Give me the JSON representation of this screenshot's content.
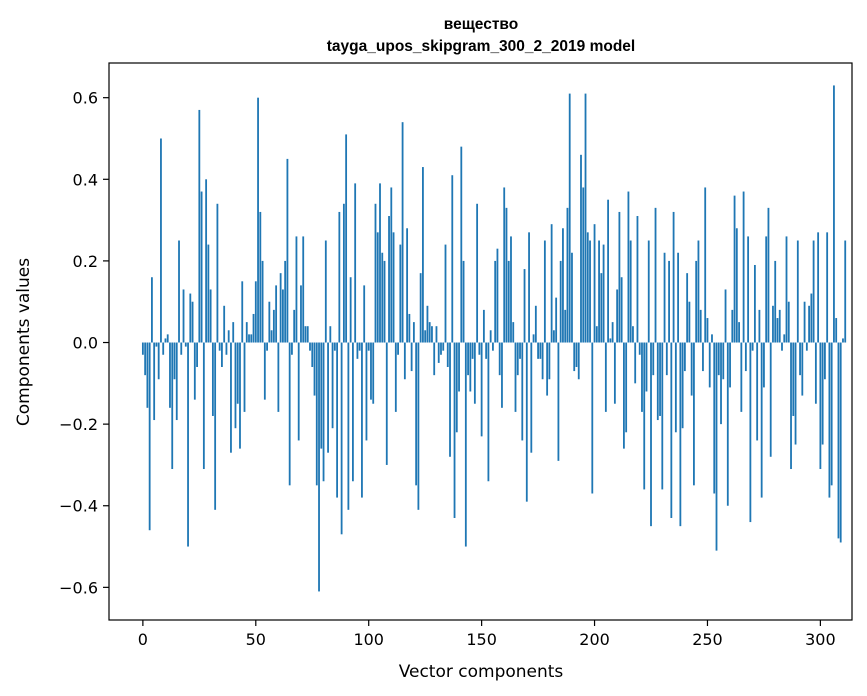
{
  "chart_data": {
    "type": "bar",
    "title": "вещество",
    "subtitle": "tayga_upos_skipgram_300_2_2019 model",
    "xlabel": "Vector components",
    "ylabel": "Components values",
    "xlim": [
      -15,
      314
    ],
    "ylim": [
      -0.68,
      0.685
    ],
    "xticks": [
      0,
      50,
      100,
      150,
      200,
      250,
      300
    ],
    "yticks": [
      -0.6,
      -0.4,
      -0.2,
      0.0,
      0.2,
      0.4,
      0.6
    ],
    "xtick_labels": [
      "0",
      "50",
      "100",
      "150",
      "200",
      "250",
      "300"
    ],
    "ytick_labels": [
      "−0.6",
      "−0.4",
      "−0.2",
      "0.0",
      "0.2",
      "0.4",
      "0.6"
    ],
    "bar_color": "#1f77b4",
    "grid": false,
    "values": [
      -0.03,
      -0.08,
      -0.16,
      -0.46,
      0.16,
      -0.19,
      -0.01,
      -0.09,
      0.5,
      -0.03,
      0.01,
      0.02,
      -0.16,
      -0.31,
      -0.09,
      -0.19,
      0.25,
      -0.03,
      0.13,
      -0.01,
      -0.5,
      0.12,
      0.1,
      -0.14,
      -0.06,
      0.57,
      0.37,
      -0.31,
      0.4,
      0.24,
      0.13,
      -0.18,
      -0.41,
      0.34,
      -0.02,
      -0.06,
      0.09,
      -0.03,
      0.03,
      -0.27,
      0.05,
      -0.21,
      -0.15,
      -0.26,
      0.15,
      -0.17,
      0.05,
      0.02,
      0.02,
      0.07,
      0.15,
      0.6,
      0.32,
      0.2,
      -0.14,
      -0.02,
      0.1,
      0.03,
      0.08,
      0.14,
      -0.17,
      0.17,
      0.13,
      0.2,
      0.45,
      -0.35,
      -0.03,
      0.08,
      0.26,
      -0.24,
      0.14,
      0.26,
      0.04,
      0.04,
      -0.02,
      -0.06,
      -0.13,
      -0.35,
      -0.61,
      -0.26,
      -0.34,
      0.25,
      -0.27,
      0.04,
      -0.21,
      -0.02,
      -0.38,
      0.32,
      -0.47,
      0.34,
      0.51,
      -0.41,
      0.16,
      -0.34,
      0.39,
      -0.04,
      -0.02,
      -0.38,
      0.14,
      -0.24,
      -0.02,
      -0.14,
      -0.15,
      0.34,
      0.27,
      0.39,
      0.22,
      0.2,
      -0.3,
      0.31,
      0.38,
      0.27,
      -0.17,
      -0.03,
      0.24,
      0.54,
      -0.09,
      0.28,
      0.07,
      -0.07,
      0.05,
      -0.35,
      -0.41,
      0.17,
      0.43,
      0.03,
      0.09,
      0.05,
      0.04,
      -0.08,
      0.04,
      -0.05,
      -0.03,
      -0.02,
      0.24,
      -0.06,
      -0.28,
      0.41,
      -0.43,
      -0.22,
      -0.12,
      0.48,
      0.2,
      -0.5,
      -0.08,
      -0.12,
      -0.04,
      -0.15,
      0.34,
      -0.03,
      -0.23,
      0.08,
      -0.04,
      -0.34,
      0.03,
      -0.02,
      0.2,
      0.23,
      -0.08,
      -0.16,
      0.38,
      0.33,
      0.2,
      0.26,
      0.05,
      -0.17,
      -0.08,
      -0.04,
      -0.24,
      0.18,
      -0.39,
      0.27,
      -0.27,
      0.02,
      0.09,
      -0.04,
      -0.04,
      -0.09,
      0.25,
      -0.13,
      -0.09,
      0.29,
      0.03,
      0.11,
      -0.29,
      0.2,
      0.28,
      0.08,
      0.33,
      0.61,
      0.22,
      -0.07,
      -0.06,
      -0.09,
      0.46,
      0.38,
      0.61,
      0.27,
      0.25,
      -0.37,
      0.29,
      0.04,
      0.25,
      0.17,
      0.24,
      -0.17,
      0.35,
      0.01,
      0.05,
      -0.15,
      0.13,
      0.32,
      0.16,
      -0.26,
      -0.22,
      0.37,
      0.25,
      0.04,
      -0.1,
      0.31,
      -0.03,
      -0.17,
      -0.36,
      -0.12,
      0.25,
      -0.45,
      -0.08,
      0.33,
      -0.19,
      -0.18,
      -0.36,
      0.22,
      -0.08,
      0.2,
      -0.43,
      0.32,
      -0.22,
      0.22,
      -0.45,
      -0.21,
      -0.07,
      0.17,
      0.1,
      -0.13,
      -0.35,
      0.2,
      0.25,
      0.08,
      -0.07,
      0.38,
      0.06,
      -0.11,
      0.02,
      -0.37,
      -0.51,
      -0.08,
      -0.2,
      -0.09,
      0.13,
      -0.4,
      -0.11,
      0.08,
      0.36,
      0.28,
      0.05,
      -0.17,
      0.37,
      -0.07,
      0.26,
      -0.44,
      -0.02,
      0.19,
      -0.24,
      0.08,
      -0.38,
      -0.11,
      0.26,
      0.33,
      -0.28,
      0.09,
      0.2,
      0.06,
      0.08,
      -0.02,
      0.02,
      0.26,
      0.1,
      -0.31,
      -0.18,
      -0.25,
      0.25,
      -0.08,
      -0.13,
      0.1,
      -0.02,
      0.09,
      0.12,
      0.25,
      -0.15,
      0.27,
      -0.31,
      -0.25,
      -0.09,
      0.27,
      -0.38,
      -0.35,
      0.63,
      0.06,
      -0.48,
      -0.49,
      0.01,
      0.25
    ]
  }
}
